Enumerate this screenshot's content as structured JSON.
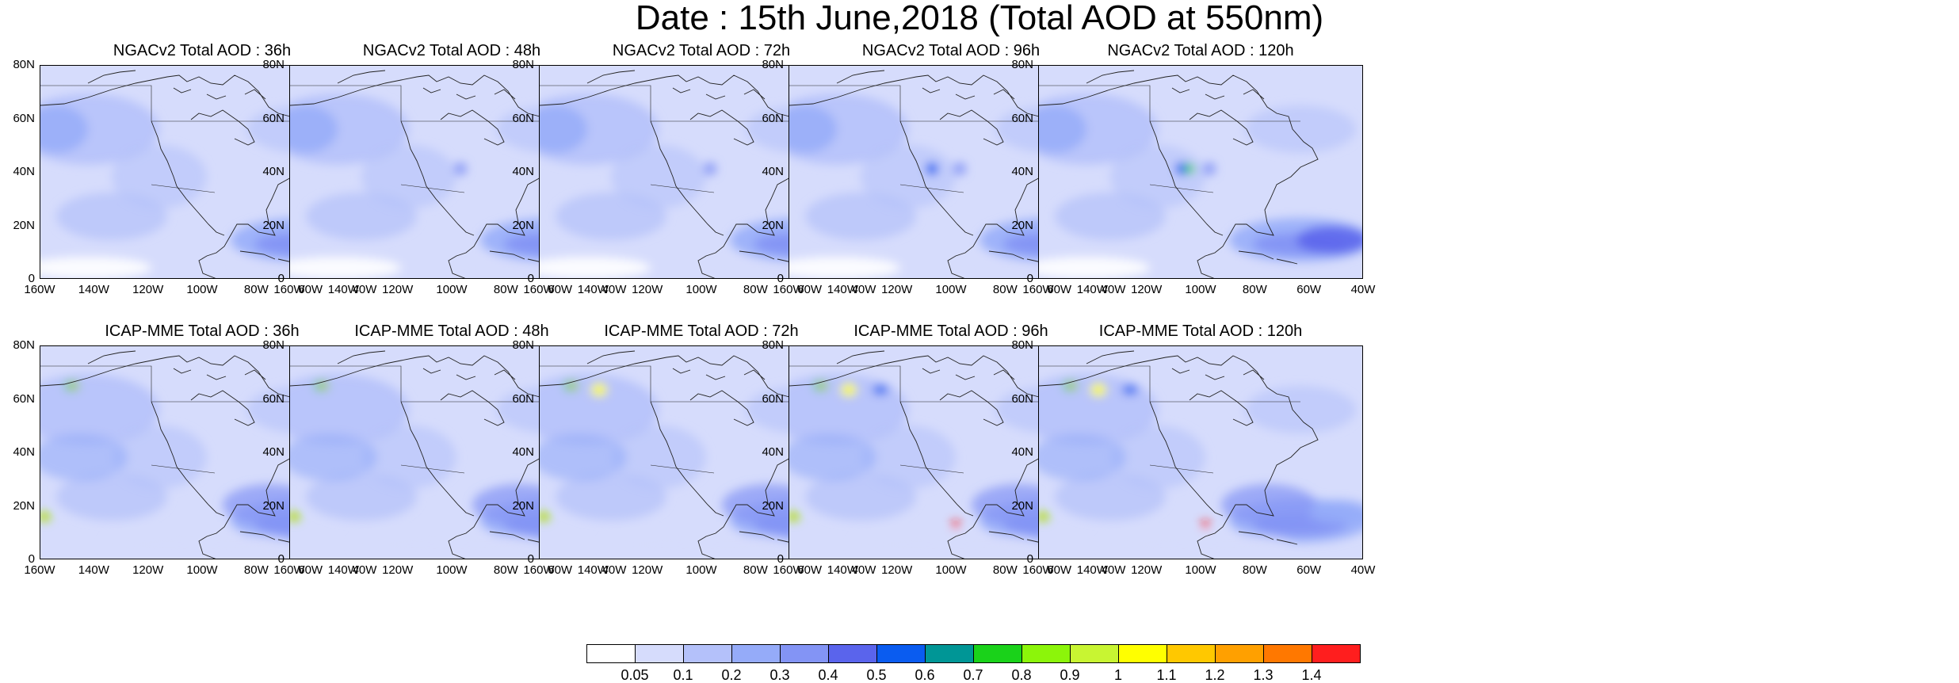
{
  "title": "Date : 15th June,2018 (Total AOD at 550nm)",
  "panels": [
    {
      "title": "NGACv2 Total AOD : 36h",
      "model": "ngac",
      "hour": 36
    },
    {
      "title": "NGACv2 Total AOD : 48h",
      "model": "ngac",
      "hour": 48
    },
    {
      "title": "NGACv2 Total AOD : 72h",
      "model": "ngac",
      "hour": 72
    },
    {
      "title": "NGACv2 Total AOD : 96h",
      "model": "ngac",
      "hour": 96
    },
    {
      "title": "NGACv2 Total AOD : 120h",
      "model": "ngac",
      "hour": 120
    },
    {
      "title": "ICAP-MME Total AOD : 36h",
      "model": "icap",
      "hour": 36
    },
    {
      "title": "ICAP-MME Total AOD : 48h",
      "model": "icap",
      "hour": 48
    },
    {
      "title": "ICAP-MME Total AOD : 72h",
      "model": "icap",
      "hour": 72
    },
    {
      "title": "ICAP-MME Total AOD : 96h",
      "model": "icap",
      "hour": 96
    },
    {
      "title": "ICAP-MME Total AOD : 120h",
      "model": "icap",
      "hour": 120
    }
  ],
  "lat_ticks": [
    "80N",
    "60N",
    "40N",
    "20N",
    "0"
  ],
  "lon_ticks": [
    "160W",
    "140W",
    "120W",
    "100W",
    "80W",
    "60W",
    "40W"
  ],
  "colorbar": {
    "colors": [
      "#ffffff",
      "#d6dcfc",
      "#b4c1fa",
      "#95abf9",
      "#8394f5",
      "#5a64ec",
      "#0a5cf0",
      "#009696",
      "#1ad21a",
      "#8cf50a",
      "#c8f532",
      "#ffff00",
      "#ffc800",
      "#ffa000",
      "#ff7800",
      "#ff1e1e"
    ],
    "labels": [
      "0.05",
      "0.1",
      "0.2",
      "0.3",
      "0.4",
      "0.5",
      "0.6",
      "0.7",
      "0.8",
      "0.9",
      "1",
      "1.1",
      "1.2",
      "1.3",
      "1.4"
    ]
  }
}
